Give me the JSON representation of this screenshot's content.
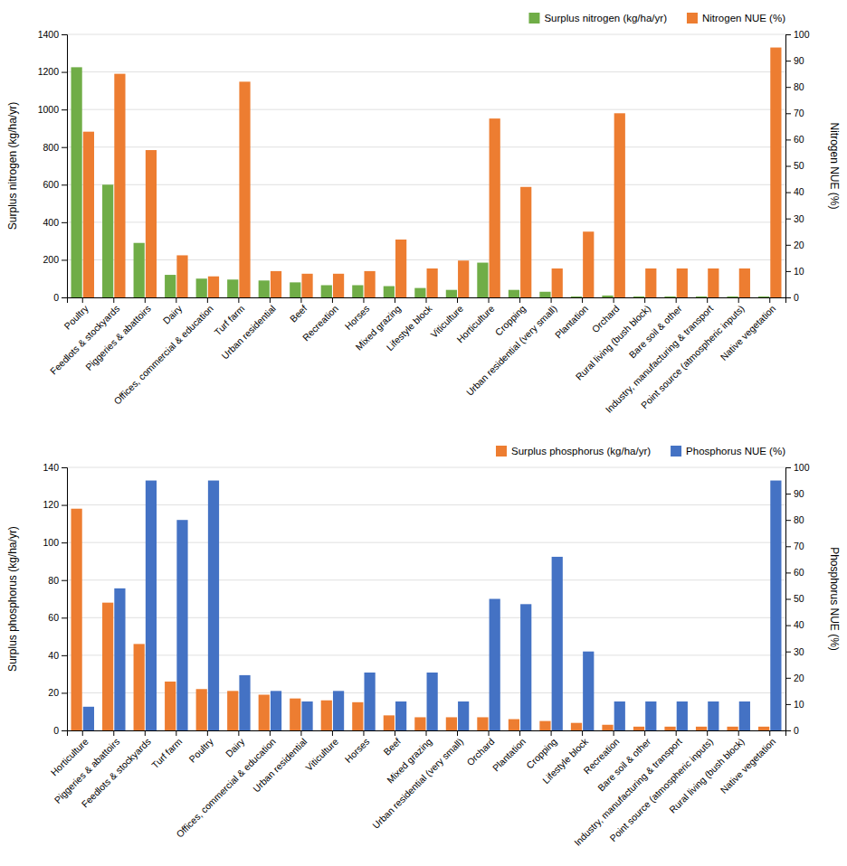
{
  "chart_data": [
    {
      "type": "bar",
      "categories": [
        "Poultry",
        "Feedlots & stockyards",
        "Piggeries & abattoirs",
        "Dairy",
        "Offices, commercial & education",
        "Turf farm",
        "Urban residential",
        "Beef",
        "Recreation",
        "Horses",
        "Mixed grazing",
        "Lifestyle block",
        "Viticulture",
        "Horticulture",
        "Cropping",
        "Urban residential (very small)",
        "Plantation",
        "Orchard",
        "Rural living (bush block)",
        "Bare soil & other",
        "Industry, manufacturing & transport",
        "Point source (atmospheric inputs)",
        "Native vegetation"
      ],
      "series": [
        {
          "name": "Surplus nitrogen (kg/ha/yr)",
          "color": "#70ad47",
          "values": [
            1225,
            600,
            290,
            120,
            100,
            95,
            90,
            80,
            65,
            65,
            60,
            50,
            40,
            185,
            40,
            30,
            5,
            10,
            5,
            5,
            5,
            5,
            5
          ]
        },
        {
          "name": "Nitrogen NUE (%)",
          "color": "#ed7d31",
          "axis": "y2",
          "values": [
            63,
            85,
            56,
            16,
            8,
            82,
            10,
            9,
            9,
            10,
            22,
            11,
            14,
            68,
            42,
            11,
            25,
            70,
            11,
            11,
            11,
            11,
            95
          ]
        }
      ],
      "ylabel": "Surplus nitrogen (kg/ha/yr)",
      "y2label": "Nitrogen NUE (%)",
      "ylim": [
        0,
        1400
      ],
      "yticks": [
        0,
        200,
        400,
        600,
        800,
        1000,
        1200,
        1400
      ],
      "y2lim": [
        0,
        100
      ],
      "y2ticks": [
        0,
        10,
        20,
        30,
        40,
        50,
        60,
        70,
        80,
        90,
        100
      ],
      "grid": true,
      "legend": "upper right"
    },
    {
      "type": "bar",
      "categories": [
        "Horticulture",
        "Piggeries & abattoirs",
        "Feedlots & stockyards",
        "Turf farm",
        "Poultry",
        "Dairy",
        "Offices, commercial & education",
        "Urban residential",
        "Viticulture",
        "Horses",
        "Beef",
        "Mixed grazing",
        "Urban residential (very small)",
        "Orchard",
        "Plantation",
        "Cropping",
        "Lifestyle block",
        "Recreation",
        "Bare soil & other",
        "Industry, manufacturing & transport",
        "Point source (atmospheric inputs)",
        "Rural living (bush block)",
        "Native vegetation"
      ],
      "series": [
        {
          "name": "Surplus phosphorus (kg/ha/yr)",
          "color": "#ed7d31",
          "values": [
            118,
            68,
            46,
            26,
            22,
            21,
            19,
            17,
            16,
            15,
            8,
            7,
            7,
            7,
            6,
            5,
            4,
            3,
            2,
            2,
            2,
            2,
            2
          ]
        },
        {
          "name": "Phosphorus NUE (%)",
          "color": "#4472c4",
          "axis": "y2",
          "values": [
            9,
            54,
            95,
            80,
            95,
            21,
            15,
            11,
            15,
            22,
            11,
            22,
            11,
            50,
            48,
            66,
            30,
            11,
            11,
            11,
            11,
            11,
            95
          ]
        }
      ],
      "ylabel": "Surplus phosphorus (kg/ha/yr)",
      "y2label": "Phosphorus NUE (%)",
      "ylim": [
        0,
        140
      ],
      "yticks": [
        0,
        20,
        40,
        60,
        80,
        100,
        120,
        140
      ],
      "y2lim": [
        0,
        100
      ],
      "y2ticks": [
        0,
        10,
        20,
        30,
        40,
        50,
        60,
        70,
        80,
        90,
        100
      ],
      "grid": true,
      "legend": "upper right"
    }
  ]
}
